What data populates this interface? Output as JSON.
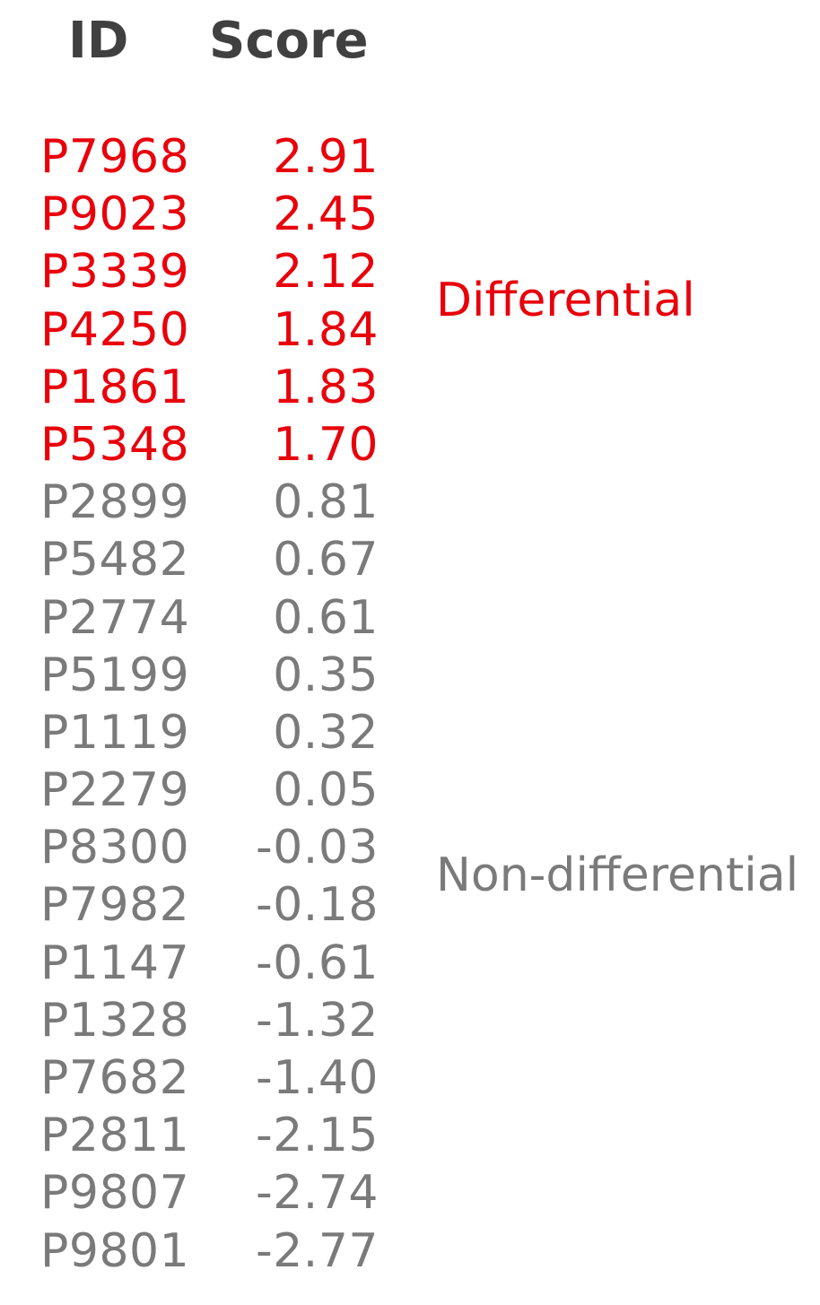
{
  "chart_data": {
    "type": "table",
    "columns": [
      "ID",
      "Score"
    ],
    "rows": [
      {
        "id": "P7968",
        "score": "2.91",
        "group": "differential"
      },
      {
        "id": "P9023",
        "score": "2.45",
        "group": "differential"
      },
      {
        "id": "P3339",
        "score": "2.12",
        "group": "differential"
      },
      {
        "id": "P4250",
        "score": "1.84",
        "group": "differential"
      },
      {
        "id": "P1861",
        "score": "1.83",
        "group": "differential"
      },
      {
        "id": "P5348",
        "score": "1.70",
        "group": "differential"
      },
      {
        "id": "P2899",
        "score": "0.81",
        "group": "non-differential"
      },
      {
        "id": "P5482",
        "score": "0.67",
        "group": "non-differential"
      },
      {
        "id": "P2774",
        "score": "0.61",
        "group": "non-differential"
      },
      {
        "id": "P5199",
        "score": "0.35",
        "group": "non-differential"
      },
      {
        "id": "P1119",
        "score": "0.32",
        "group": "non-differential"
      },
      {
        "id": "P2279",
        "score": "0.05",
        "group": "non-differential"
      },
      {
        "id": "P8300",
        "score": "-0.03",
        "group": "non-differential"
      },
      {
        "id": "P7982",
        "score": "-0.18",
        "group": "non-differential"
      },
      {
        "id": "P1147",
        "score": "-0.61",
        "group": "non-differential"
      },
      {
        "id": "P1328",
        "score": "-1.32",
        "group": "non-differential"
      },
      {
        "id": "P7682",
        "score": "-1.40",
        "group": "non-differential"
      },
      {
        "id": "P2811",
        "score": "-2.15",
        "group": "non-differential"
      },
      {
        "id": "P9807",
        "score": "-2.74",
        "group": "non-differential"
      },
      {
        "id": "P9801",
        "score": "-2.77",
        "group": "non-differential"
      }
    ],
    "group_labels": {
      "differential": "Differential",
      "non_differential": "Non-differential"
    },
    "colors": {
      "differential": "#e8000b",
      "non_differential": "#7a7a7a",
      "header": "#404040"
    }
  }
}
